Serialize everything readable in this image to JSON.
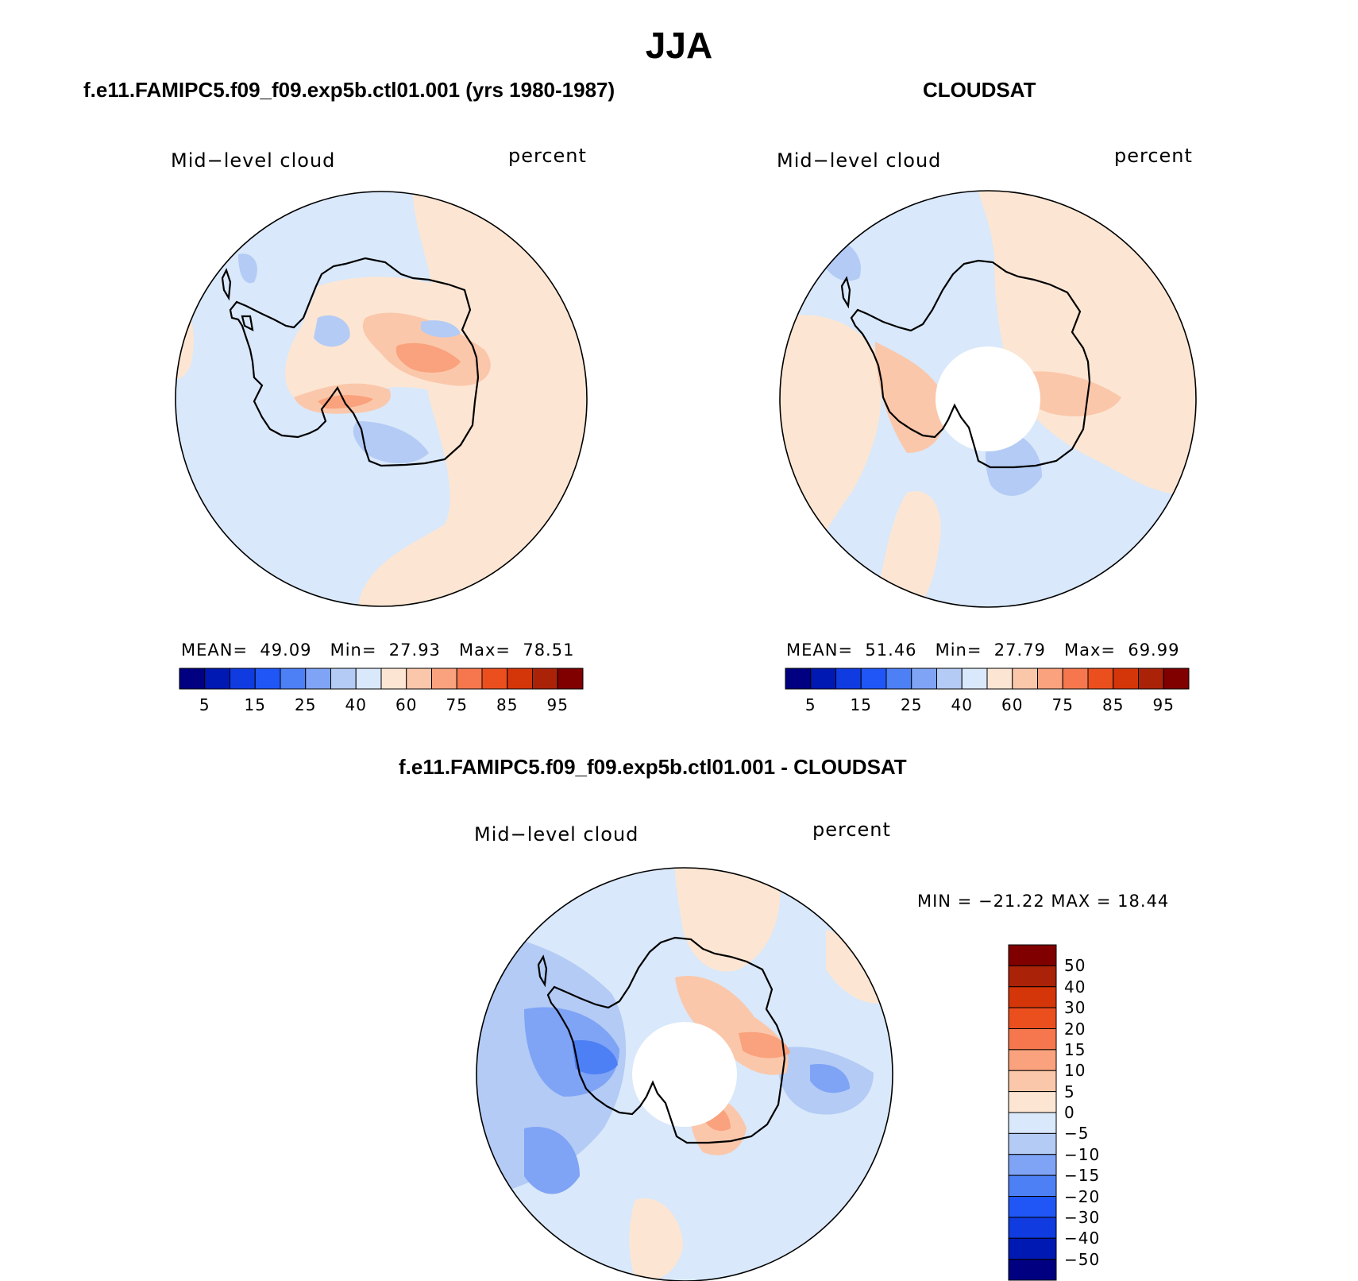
{
  "title": "JJA",
  "panels": [
    {
      "id": "model",
      "title": "f.e11.FAMIPC5.f09_f09.exp5b.ctl01.001 (yrs 1980-1987)",
      "field_label": "Mid−level cloud",
      "units": "percent",
      "stats": {
        "mean_label": "MEAN=",
        "mean": "49.09",
        "min_label": "Min=",
        "min": "27.93",
        "max_label": "Max=",
        "max": "78.51"
      }
    },
    {
      "id": "obs",
      "title": "CLOUDSAT",
      "field_label": "Mid−level cloud",
      "units": "percent",
      "stats": {
        "mean_label": "MEAN=",
        "mean": "51.46",
        "min_label": "Min=",
        "min": "27.79",
        "max_label": "Max=",
        "max": "69.99"
      }
    },
    {
      "id": "diff",
      "title": "f.e11.FAMIPC5.f09_f09.exp5b.ctl01.001 - CLOUDSAT",
      "field_label": "Mid−level cloud",
      "units": "percent",
      "stats": {
        "text": "MIN = −21.22 MAX =   18.44"
      }
    }
  ],
  "colorbar_abs": {
    "colors": [
      "#000080",
      "#0019b3",
      "#0f3be0",
      "#1f56f5",
      "#4d7ff5",
      "#7fa3f5",
      "#b3cbf5",
      "#d9e8fa",
      "#fce6d3",
      "#fbc7aa",
      "#f9a27d",
      "#f6774d",
      "#ec4f1e",
      "#d43509",
      "#aa2208",
      "#800000"
    ],
    "labels": [
      "5",
      "15",
      "25",
      "40",
      "60",
      "75",
      "85",
      "95"
    ]
  },
  "colorbar_diff": {
    "colors": [
      "#800000",
      "#aa2208",
      "#d43509",
      "#ec4f1e",
      "#f6774d",
      "#f9a27d",
      "#fbc7aa",
      "#fce6d3",
      "#d9e8fa",
      "#b3cbf5",
      "#7fa3f5",
      "#4d7ff5",
      "#1f56f5",
      "#0f3be0",
      "#0019b3",
      "#000080"
    ],
    "labels": [
      "50",
      "40",
      "30",
      "20",
      "15",
      "10",
      "5",
      "0",
      "−5",
      "−10",
      "−15",
      "−20",
      "−30",
      "−40",
      "−50"
    ]
  },
  "map_colors": {
    "land_ocean_blue": "#d9e8fa",
    "light_orange": "#fce6d3",
    "peach": "#fbc7aa",
    "orange": "#f9a27d",
    "deep_orange": "#f6774d",
    "light_blue": "#b3cbf5",
    "mid_blue": "#7fa3f5",
    "blue": "#4d7ff5",
    "strong_blue": "#1f56f5"
  }
}
